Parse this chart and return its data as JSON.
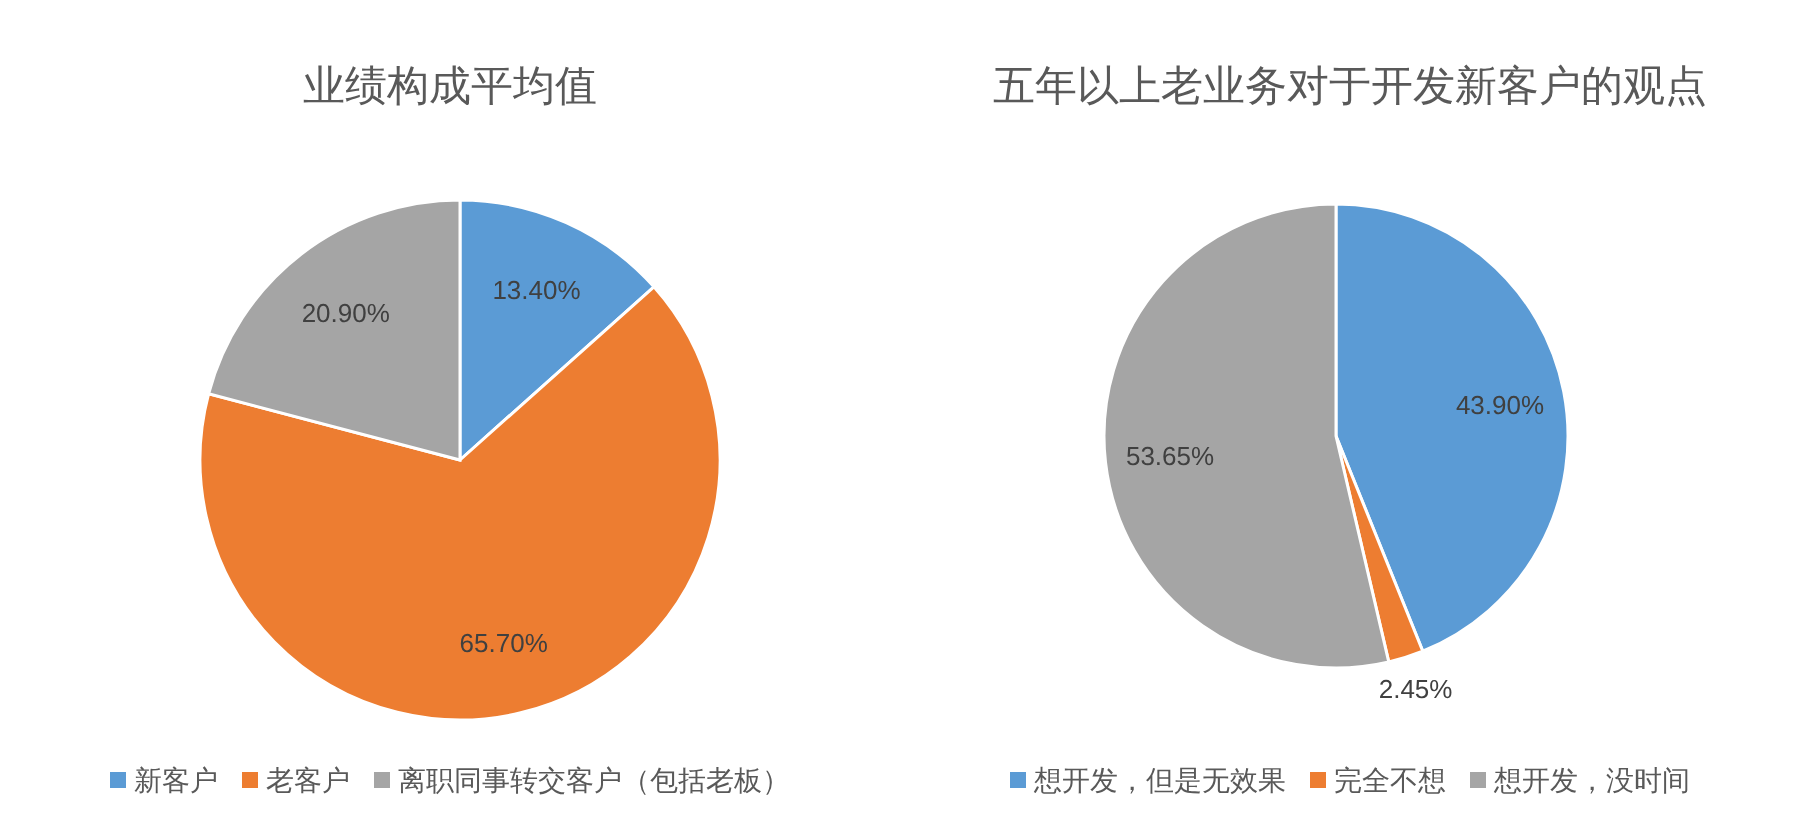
{
  "chart_data": [
    {
      "type": "pie",
      "title": "业绩构成平均值",
      "categories": [
        "新客户",
        "老客户",
        "离职同事转交客户（包括老板）"
      ],
      "values": [
        13.4,
        65.7,
        20.9
      ],
      "colors": [
        "#5b9bd5",
        "#ed7d31",
        "#a5a5a5"
      ],
      "value_labels": [
        "13.40%",
        "65.70%",
        "20.90%"
      ],
      "legend": "bottom"
    },
    {
      "type": "pie",
      "title": "五年以上老业务对于开发新客户的观点",
      "categories": [
        "想开发，但是无效果",
        "完全不想",
        "想开发，没时间"
      ],
      "values": [
        43.9,
        2.45,
        53.65
      ],
      "colors": [
        "#5b9bd5",
        "#ed7d31",
        "#a5a5a5"
      ],
      "value_labels": [
        "43.90%",
        "2.45%",
        "53.65%"
      ],
      "legend": "bottom"
    }
  ]
}
